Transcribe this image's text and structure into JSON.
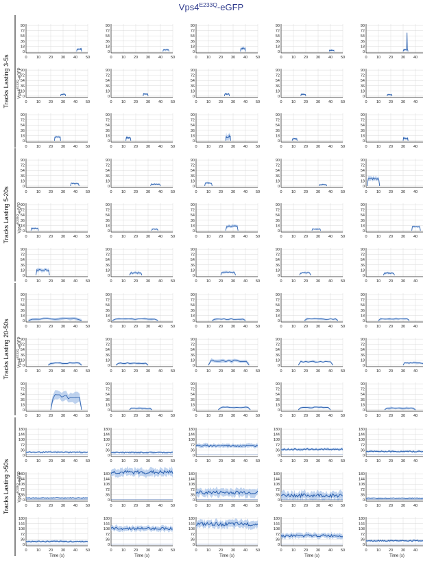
{
  "title_main": "Vps4",
  "title_sup": "E233Q",
  "title_tail": "-eGFP",
  "colors": {
    "title": "#2e3a8c",
    "line": "#2f63b0",
    "band": "#a9c4ea",
    "grid": "#d9d9d9",
    "axis": "#222222"
  },
  "groups": [
    {
      "label": "Tracks Lasting 3-5s",
      "ylabel_main": "Vps4",
      "ylabel_sup": "E233Q",
      "ylabel_tail": "-eGFP"
    },
    {
      "label": "Tracks Lasting 5-20s",
      "ylabel_main": "Vps4",
      "ylabel_sup": "E233Q",
      "ylabel_tail": "-eGFP"
    },
    {
      "label": "Tracks Lasting 20-50s",
      "ylabel_main": "Vps4",
      "ylabel_sup": "E233Q",
      "ylabel_tail": "-eGFP"
    },
    {
      "label": "Tracks Lasting >50s",
      "ylabel_main": "Vps4",
      "ylabel_sup": "E233Q",
      "ylabel_tail": "-eGFP"
    }
  ],
  "xlabel": "Time (s)",
  "xticks": [
    0,
    10,
    20,
    30,
    40,
    50
  ],
  "yticks_short": [
    0,
    18,
    36,
    54,
    72,
    90
  ],
  "yticks_long": [
    0,
    36,
    72,
    108,
    144,
    180
  ],
  "chart_data": {
    "type": "line",
    "grid": true,
    "x_range": [
      0,
      50
    ],
    "y_range_groups_1_3": [
      -5,
      95
    ],
    "y_range_group_4": [
      -10,
      190
    ],
    "panels": [
      {
        "x0": 41,
        "x1": 45,
        "level": 8,
        "band": 4
      },
      {
        "x0": 42,
        "x1": 47,
        "level": 6,
        "band": 4
      },
      {
        "x0": 36,
        "x1": 40,
        "level": 10,
        "band": 6
      },
      {
        "x0": 39,
        "x1": 43,
        "level": 4,
        "band": 3
      },
      {
        "x0": 30,
        "x1": 34,
        "level": 6,
        "band": 5,
        "spike": 65
      },
      {
        "x0": 28,
        "x1": 32,
        "level": 6,
        "band": 3
      },
      {
        "x0": 26,
        "x1": 30,
        "level": 7,
        "band": 3
      },
      {
        "x0": 23,
        "x1": 27,
        "level": 7,
        "band": 4
      },
      {
        "x0": 16,
        "x1": 20,
        "level": 6,
        "band": 3
      },
      {
        "x0": 17,
        "x1": 21,
        "level": 5,
        "band": 3
      },
      {
        "x0": 23,
        "x1": 28,
        "level": 13,
        "band": 5
      },
      {
        "x0": 12,
        "x1": 16,
        "level": 10,
        "band": 5
      },
      {
        "x0": 24,
        "x1": 28,
        "level": 14,
        "band": 12
      },
      {
        "x0": 9,
        "x1": 13,
        "level": 7,
        "band": 4
      },
      {
        "x0": 30,
        "x1": 34,
        "level": 8,
        "band": 5
      },
      {
        "x0": 36,
        "x1": 43,
        "level": 9,
        "band": 4
      },
      {
        "x0": 32,
        "x1": 40,
        "level": 6,
        "band": 3
      },
      {
        "x0": 7,
        "x1": 13,
        "level": 10,
        "band": 4
      },
      {
        "x0": 31,
        "x1": 37,
        "level": 5,
        "band": 3
      },
      {
        "x0": 1,
        "x1": 11,
        "level": 25,
        "band": 8
      },
      {
        "x0": 4,
        "x1": 10,
        "level": 8,
        "band": 4
      },
      {
        "x0": 33,
        "x1": 38,
        "level": 5,
        "band": 3
      },
      {
        "x0": 24,
        "x1": 34,
        "level": 15,
        "band": 6
      },
      {
        "x0": 25,
        "x1": 32,
        "level": 5,
        "band": 3
      },
      {
        "x0": 37,
        "x1": 44,
        "level": 14,
        "band": 4
      },
      {
        "x0": 8,
        "x1": 19,
        "level": 18,
        "band": 7
      },
      {
        "x0": 15,
        "x1": 25,
        "level": 8,
        "band": 5
      },
      {
        "x0": 20,
        "x1": 32,
        "level": 10,
        "band": 4
      },
      {
        "x0": 15,
        "x1": 24,
        "level": 8,
        "band": 4
      },
      {
        "x0": 14,
        "x1": 23,
        "level": 7,
        "band": 4
      },
      {
        "x0": 2,
        "x1": 45,
        "level": 6,
        "band": 5
      },
      {
        "x0": 1,
        "x1": 38,
        "level": 5,
        "band": 4
      },
      {
        "x0": 13,
        "x1": 40,
        "level": 5,
        "band": 4
      },
      {
        "x0": 19,
        "x1": 46,
        "level": 5,
        "band": 4
      },
      {
        "x0": 10,
        "x1": 35,
        "level": 5,
        "band": 4
      },
      {
        "x0": 18,
        "x1": 45,
        "level": 7,
        "band": 4
      },
      {
        "x0": 4,
        "x1": 30,
        "level": 7,
        "band": 4
      },
      {
        "x0": 10,
        "x1": 43,
        "level": 15,
        "band": 7
      },
      {
        "x0": 14,
        "x1": 42,
        "level": 12,
        "band": 4
      },
      {
        "x0": 30,
        "x1": 47,
        "level": 8,
        "band": 4
      },
      {
        "x0": 20,
        "x1": 45,
        "level": 45,
        "band": 20
      },
      {
        "x0": 15,
        "x1": 33,
        "level": 5,
        "band": 4
      },
      {
        "x0": 18,
        "x1": 44,
        "level": 8,
        "band": 4
      },
      {
        "x0": 14,
        "x1": 40,
        "level": 8,
        "band": 4
      },
      {
        "x0": 15,
        "x1": 40,
        "level": 6,
        "band": 4
      },
      {
        "x0": 0,
        "x1": 50,
        "level": 20,
        "band": 8
      },
      {
        "x0": 0,
        "x1": 50,
        "level": 18,
        "band": 8
      },
      {
        "x0": 0,
        "x1": 50,
        "level": 65,
        "band": 15
      },
      {
        "x0": 0,
        "x1": 50,
        "level": 40,
        "band": 10
      },
      {
        "x0": 0,
        "x1": 50,
        "level": 25,
        "band": 8
      },
      {
        "x0": 0,
        "x1": 50,
        "level": 12,
        "band": 6
      },
      {
        "x0": 0,
        "x1": 50,
        "level": 190,
        "band": 30
      },
      {
        "x0": 0,
        "x1": 50,
        "level": 50,
        "band": 30
      },
      {
        "x0": 0,
        "x1": 50,
        "level": 30,
        "band": 30
      },
      {
        "x0": 0,
        "x1": 50,
        "level": 10,
        "band": 6
      },
      {
        "x0": 0,
        "x1": 50,
        "level": 20,
        "band": 8
      },
      {
        "x0": 0,
        "x1": 50,
        "level": 110,
        "band": 20
      },
      {
        "x0": 0,
        "x1": 50,
        "level": 140,
        "band": 30
      },
      {
        "x0": 0,
        "x1": 50,
        "level": 60,
        "band": 20
      },
      {
        "x0": 0,
        "x1": 50,
        "level": 25,
        "band": 8
      }
    ]
  }
}
